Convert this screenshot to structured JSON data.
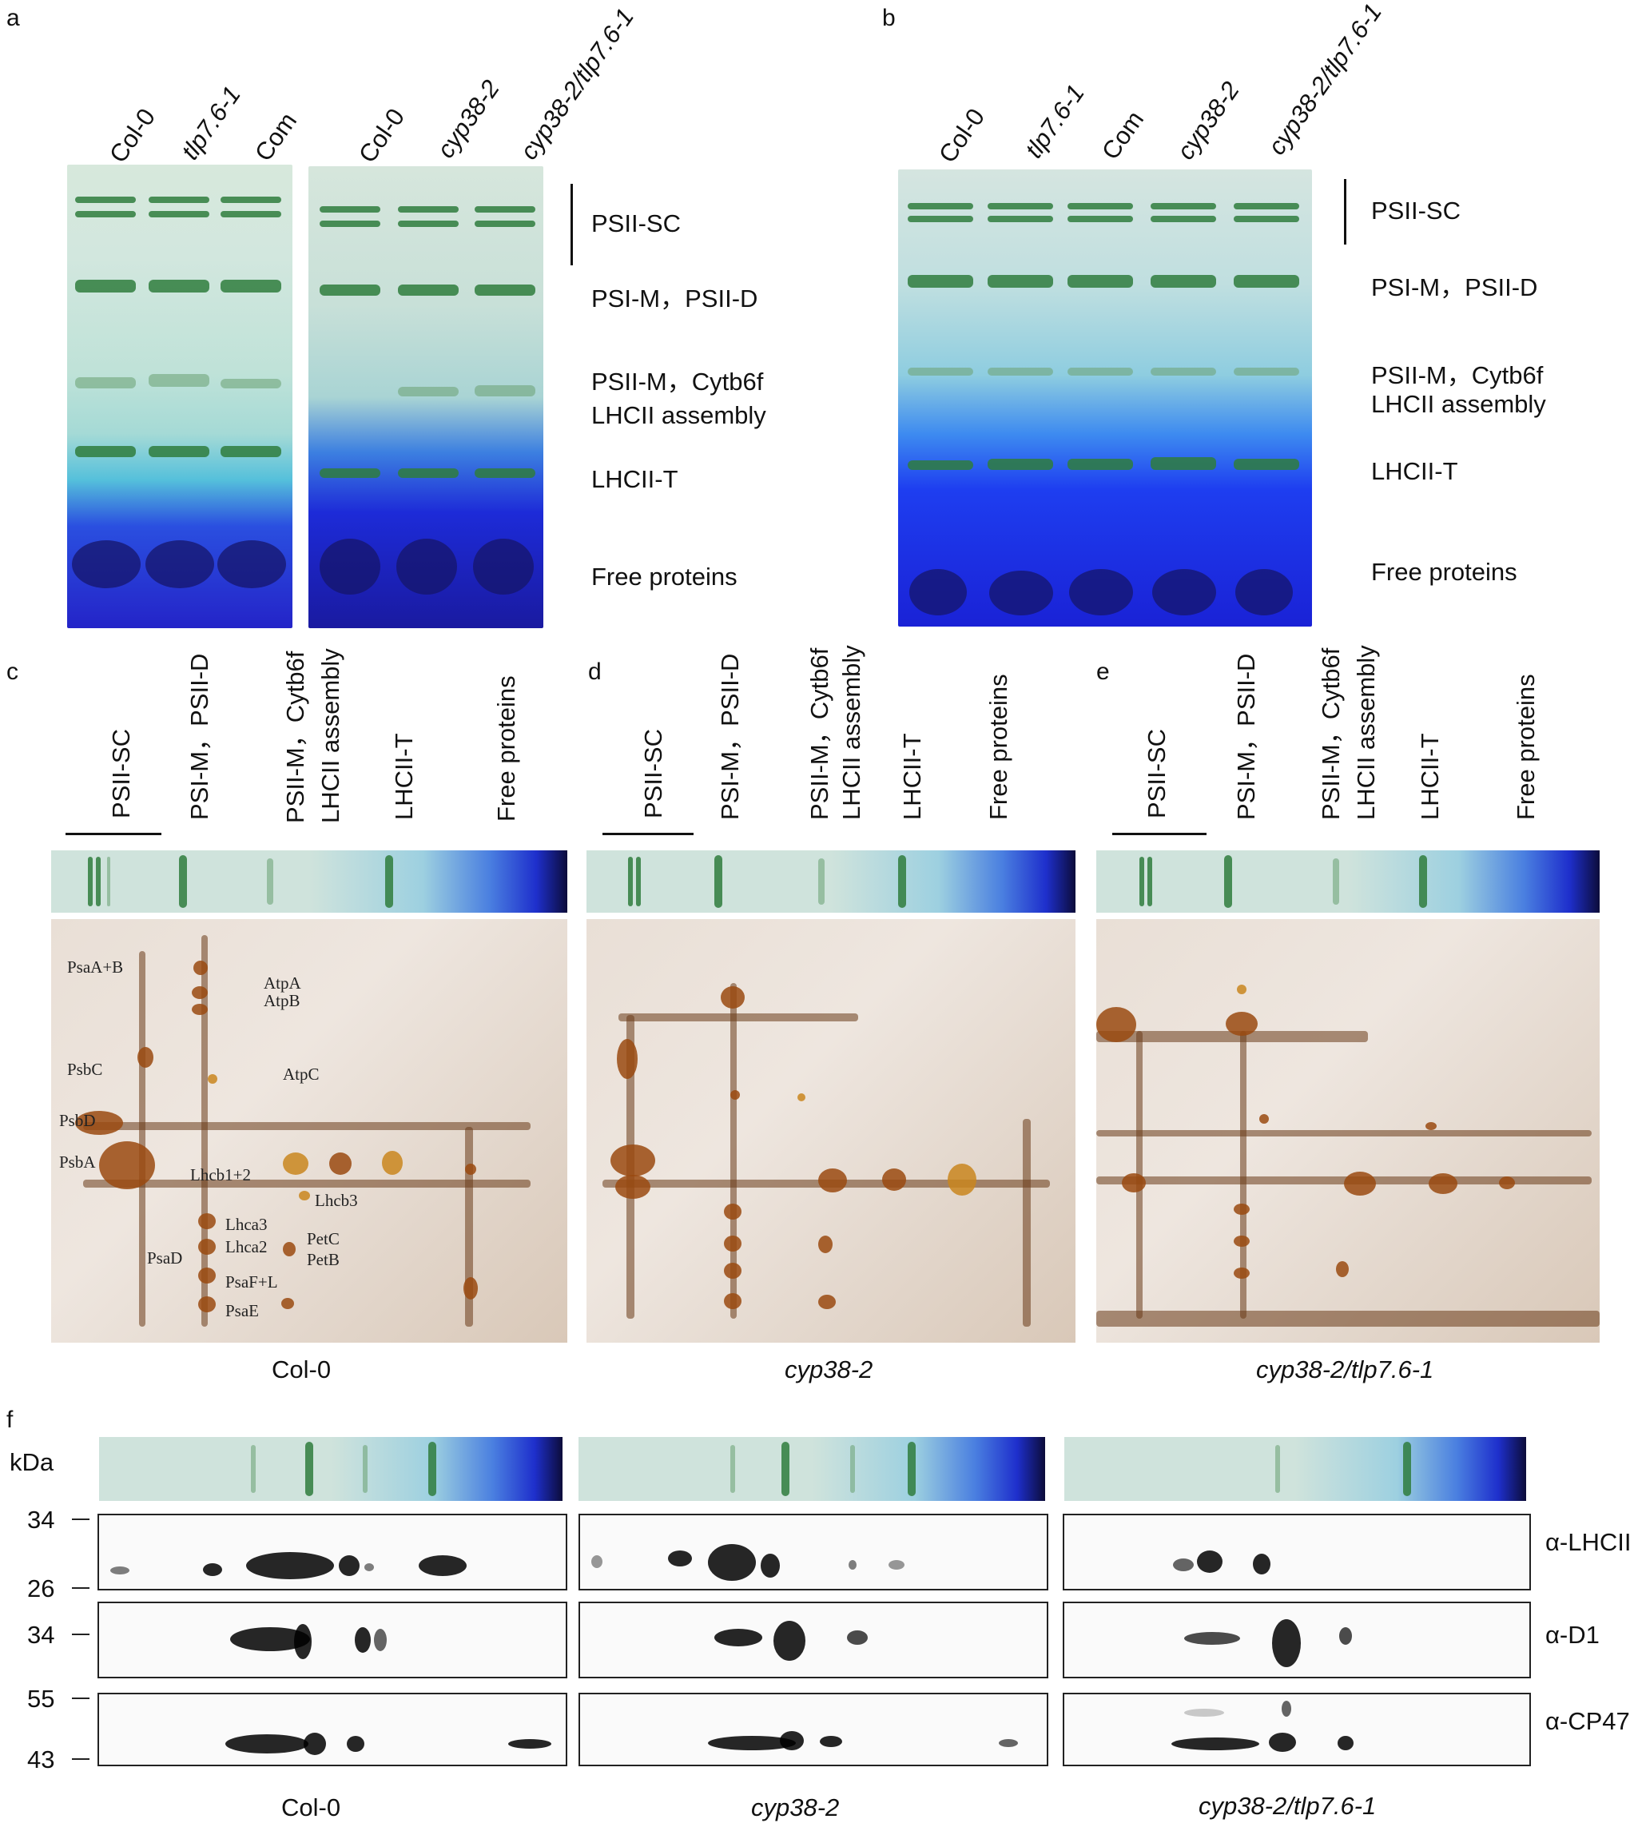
{
  "panel_letters": {
    "a": "a",
    "b": "b",
    "c": "c",
    "d": "d",
    "e": "e",
    "f": "f"
  },
  "panel_a": {
    "gel1_lanes": [
      "Col-0",
      "tlp7.6-1",
      "Com"
    ],
    "gel2_lanes": [
      "Col-0",
      "cyp38-2",
      "cyp38-2/tlp7.6-1"
    ]
  },
  "panel_b": {
    "lanes": [
      "Col-0",
      "tlp7.6-1",
      "Com",
      "cyp38-2",
      "cyp38-2/tlp7.6-1"
    ]
  },
  "band_labels": {
    "psii_sc": "PSII-SC",
    "psi_m_psii_d": "PSI-M，PSII-D",
    "psii_m_cytb6f": "PSII-M，Cytb6f",
    "lhcii_assembly": "LHCII assembly",
    "lhcii_t": "LHCII-T",
    "free_proteins": "Free proteins"
  },
  "column_labels": {
    "psii_sc": "PSII-SC",
    "psi_m_psii_d": "PSI-M，PSII-D",
    "psii_m_cytb6f": "PSII-M，Cytb6f",
    "lhcii_assembly": "LHCII assembly",
    "lhcii_t": "LHCII-T",
    "free_proteins": "Free proteins"
  },
  "panel_c": {
    "caption": "Col-0",
    "spots": [
      "PsaA+B",
      "AtpA",
      "AtpB",
      "PsbC",
      "AtpC",
      "PsbD",
      "PsbA",
      "Lhcb1+2",
      "Lhcb3",
      "Lhca3",
      "Lhca2",
      "PetC",
      "PetB",
      "PsaD",
      "PsaF+L",
      "PsaE"
    ]
  },
  "panel_d": {
    "caption": "cyp38-2"
  },
  "panel_e": {
    "caption": "cyp38-2/tlp7.6-1"
  },
  "panel_f": {
    "unit": "kDa",
    "ticks": [
      "34",
      "26",
      "34",
      "55",
      "43"
    ],
    "antibodies": [
      "α-LHCII",
      "α-D1",
      "α-CP47"
    ],
    "captions": [
      "Col-0",
      "cyp38-2",
      "cyp38-2/tlp7.6-1"
    ]
  }
}
